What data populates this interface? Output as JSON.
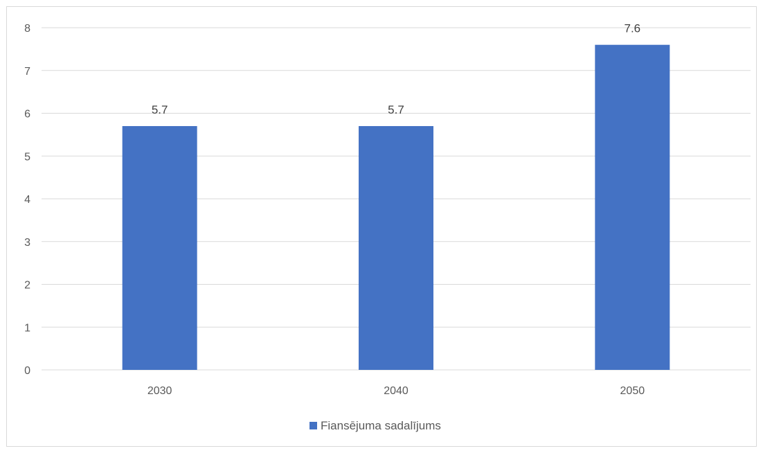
{
  "chart_data": {
    "type": "bar",
    "categories": [
      "2030",
      "2040",
      "2050"
    ],
    "series": [
      {
        "name": "Fiansējuma sadalījums",
        "values": [
          5.7,
          5.7,
          7.6
        ],
        "color": "#4472C4"
      }
    ],
    "data_labels": [
      "5.7",
      "5.7",
      "7.6"
    ],
    "y_ticks": [
      "0",
      "1",
      "2",
      "3",
      "4",
      "5",
      "6",
      "7",
      "8"
    ],
    "ylim": [
      0,
      8
    ],
    "grid": true,
    "legend_position": "bottom",
    "title": "",
    "xlabel": "",
    "ylabel": ""
  }
}
